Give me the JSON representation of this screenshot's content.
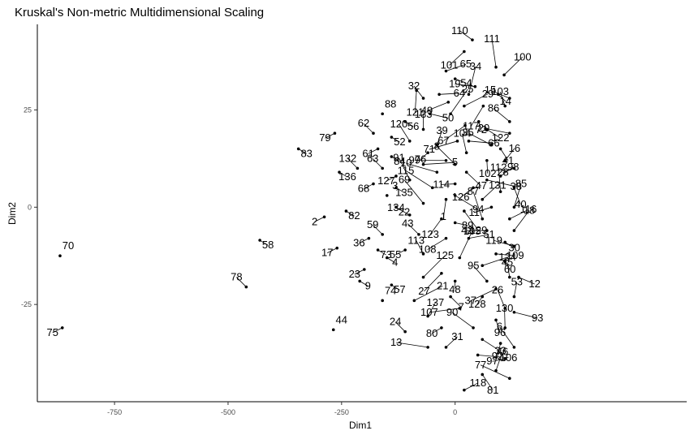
{
  "chart_data": {
    "type": "scatter",
    "title": "Kruskal's Non-metric Multidimensional Scaling",
    "xlabel": "Dim1",
    "ylabel": "Dim2",
    "xlim": [
      -920,
      510
    ],
    "ylim": [
      -50,
      47
    ],
    "xticks": [
      -750,
      -500,
      -250,
      0
    ],
    "yticks": [
      -25,
      0,
      25
    ],
    "xtick_labels": [
      "-750",
      "-500",
      "-250",
      "0"
    ],
    "ytick_labels": [
      "-25",
      "0",
      "25"
    ],
    "grid": false,
    "legend": "none",
    "points": [
      {
        "label": "70",
        "x": -870,
        "y": -12.5
      },
      {
        "label": "75",
        "x": -865,
        "y": -31
      },
      {
        "label": "58",
        "x": -430,
        "y": -8.5
      },
      {
        "label": "78",
        "x": -460,
        "y": -20.5
      },
      {
        "label": "83",
        "x": -345,
        "y": 15
      },
      {
        "label": "79",
        "x": -265,
        "y": 19
      },
      {
        "label": "44",
        "x": -268,
        "y": -31.5
      },
      {
        "label": "2",
        "x": -288,
        "y": -2.5
      },
      {
        "label": "82",
        "x": -240,
        "y": -1
      },
      {
        "label": "132",
        "x": -215,
        "y": 10
      },
      {
        "label": "136",
        "x": -255,
        "y": 9
      },
      {
        "label": "17",
        "x": -260,
        "y": -10.5
      },
      {
        "label": "110",
        "x": 38,
        "y": 43
      },
      {
        "label": "65",
        "x": -20,
        "y": 35
      },
      {
        "label": "101",
        "x": 20,
        "y": 40
      },
      {
        "label": "111",
        "x": 90,
        "y": 36
      },
      {
        "label": "54",
        "x": 0,
        "y": 33
      },
      {
        "label": "19",
        "x": 44,
        "y": 31
      },
      {
        "label": "100",
        "x": 108,
        "y": 34
      },
      {
        "label": "121",
        "x": -85,
        "y": 30
      },
      {
        "label": "32",
        "x": -70,
        "y": 28
      },
      {
        "label": "64",
        "x": -35,
        "y": 29
      },
      {
        "label": "49",
        "x": -15,
        "y": 27
      },
      {
        "label": "34",
        "x": 30,
        "y": 29
      },
      {
        "label": "14",
        "x": 95,
        "y": 29
      },
      {
        "label": "15",
        "x": 120,
        "y": 28
      },
      {
        "label": "29",
        "x": 20,
        "y": 26
      },
      {
        "label": "117",
        "x": 62,
        "y": 26
      },
      {
        "label": "103",
        "x": 110,
        "y": 26
      },
      {
        "label": "50",
        "x": -55,
        "y": 24
      },
      {
        "label": "88",
        "x": -160,
        "y": 24
      },
      {
        "label": "25",
        "x": -10,
        "y": 24
      },
      {
        "label": "72",
        "x": 52,
        "y": 22
      },
      {
        "label": "86",
        "x": 120,
        "y": 22
      },
      {
        "label": "56",
        "x": -110,
        "y": 22
      },
      {
        "label": "67",
        "x": 22,
        "y": 21
      },
      {
        "label": "133",
        "x": -70,
        "y": 20
      },
      {
        "label": "122",
        "x": 70,
        "y": 20
      },
      {
        "label": "20",
        "x": 120,
        "y": 19
      },
      {
        "label": "62",
        "x": -180,
        "y": 19
      },
      {
        "label": "52",
        "x": -140,
        "y": 18
      },
      {
        "label": "120",
        "x": -100,
        "y": 17
      },
      {
        "label": "66",
        "x": 30,
        "y": 17
      },
      {
        "label": "71",
        "x": 5,
        "y": 17
      },
      {
        "label": "39",
        "x": -40,
        "y": 16
      },
      {
        "label": "41",
        "x": 100,
        "y": 15
      },
      {
        "label": "35",
        "x": 80,
        "y": 16
      },
      {
        "label": "61",
        "x": -170,
        "y": 15
      },
      {
        "label": "76",
        "x": -60,
        "y": 14
      },
      {
        "label": "104",
        "x": 25,
        "y": 14
      },
      {
        "label": "84",
        "x": -140,
        "y": 13
      },
      {
        "label": "99",
        "x": -20,
        "y": 12
      },
      {
        "label": "16",
        "x": 110,
        "y": 12
      },
      {
        "label": "102",
        "x": 70,
        "y": 12
      },
      {
        "label": "8",
        "x": 0,
        "y": 11
      },
      {
        "label": "5",
        "x": -70,
        "y": 11
      },
      {
        "label": "28",
        "x": 130,
        "y": 10
      },
      {
        "label": "63",
        "x": -160,
        "y": 10
      },
      {
        "label": "47",
        "x": 25,
        "y": 9
      },
      {
        "label": "10",
        "x": -40,
        "y": 9
      },
      {
        "label": "98",
        "x": 100,
        "y": 8
      },
      {
        "label": "127",
        "x": -130,
        "y": 8
      },
      {
        "label": "91",
        "x": -100,
        "y": 7
      },
      {
        "label": "38",
        "x": 70,
        "y": 7
      },
      {
        "label": "114",
        "x": 0,
        "y": 6
      },
      {
        "label": "68",
        "x": -180,
        "y": 6
      },
      {
        "label": "40",
        "x": 130,
        "y": 5
      },
      {
        "label": "115",
        "x": -50,
        "y": 5
      },
      {
        "label": "135",
        "x": -130,
        "y": 5
      },
      {
        "label": "126",
        "x": 40,
        "y": 5
      },
      {
        "label": "112",
        "x": 100,
        "y": 4
      },
      {
        "label": "94",
        "x": 0,
        "y": 3
      },
      {
        "label": "3",
        "x": -150,
        "y": 3
      },
      {
        "label": "131",
        "x": 60,
        "y": 2
      },
      {
        "label": "1",
        "x": -20,
        "y": 2
      },
      {
        "label": "69",
        "x": -70,
        "y": 1
      },
      {
        "label": "22",
        "x": -130,
        "y": 0
      },
      {
        "label": "11",
        "x": 80,
        "y": 0
      },
      {
        "label": "85",
        "x": 130,
        "y": 0
      },
      {
        "label": "129",
        "x": 20,
        "y": -1
      },
      {
        "label": "134",
        "x": -100,
        "y": -2
      },
      {
        "label": "116",
        "x": 120,
        "y": -3
      },
      {
        "label": "123",
        "x": -30,
        "y": -3
      },
      {
        "label": "87",
        "x": 60,
        "y": -3
      },
      {
        "label": "89",
        "x": 0,
        "y": -4
      },
      {
        "label": "42",
        "x": 70,
        "y": -6
      },
      {
        "label": "18",
        "x": 130,
        "y": -6
      },
      {
        "label": "59",
        "x": -160,
        "y": -7
      },
      {
        "label": "43",
        "x": -80,
        "y": -7
      },
      {
        "label": "51",
        "x": 30,
        "y": -8
      },
      {
        "label": "108",
        "x": -20,
        "y": -8
      },
      {
        "label": "36",
        "x": -190,
        "y": -8
      },
      {
        "label": "30",
        "x": 110,
        "y": -9
      },
      {
        "label": "119",
        "x": 130,
        "y": -10
      },
      {
        "label": "73",
        "x": -170,
        "y": -11
      },
      {
        "label": "55",
        "x": -110,
        "y": -11
      },
      {
        "label": "113",
        "x": -70,
        "y": -12
      },
      {
        "label": "109",
        "x": 90,
        "y": -12
      },
      {
        "label": "4",
        "x": -150,
        "y": -13
      },
      {
        "label": "105",
        "x": 10,
        "y": -13
      },
      {
        "label": "60",
        "x": 110,
        "y": -14
      },
      {
        "label": "23",
        "x": -200,
        "y": -16
      },
      {
        "label": "124",
        "x": 60,
        "y": -15
      },
      {
        "label": "27",
        "x": -30,
        "y": -17
      },
      {
        "label": "45",
        "x": 120,
        "y": -18
      },
      {
        "label": "12",
        "x": 140,
        "y": -18
      },
      {
        "label": "9",
        "x": -210,
        "y": -19
      },
      {
        "label": "125",
        "x": -70,
        "y": -18
      },
      {
        "label": "48",
        "x": 0,
        "y": -19
      },
      {
        "label": "95",
        "x": 70,
        "y": -19
      },
      {
        "label": "57",
        "x": -140,
        "y": -20
      },
      {
        "label": "37",
        "x": 90,
        "y": -21
      },
      {
        "label": "53",
        "x": 130,
        "y": -23
      },
      {
        "label": "7",
        "x": -10,
        "y": -23
      },
      {
        "label": "74",
        "x": -160,
        "y": -24
      },
      {
        "label": "21",
        "x": -90,
        "y": -24
      },
      {
        "label": "128",
        "x": 60,
        "y": -23
      },
      {
        "label": "26",
        "x": 110,
        "y": -26
      },
      {
        "label": "93",
        "x": 130,
        "y": -27
      },
      {
        "label": "107",
        "x": 10,
        "y": -26
      },
      {
        "label": "137",
        "x": -60,
        "y": -28
      },
      {
        "label": "96",
        "x": 90,
        "y": -29
      },
      {
        "label": "90",
        "x": 40,
        "y": -31
      },
      {
        "label": "24",
        "x": -110,
        "y": -32
      },
      {
        "label": "80",
        "x": -30,
        "y": -31
      },
      {
        "label": "130",
        "x": 110,
        "y": -31
      },
      {
        "label": "33",
        "x": 60,
        "y": -34
      },
      {
        "label": "13",
        "x": -60,
        "y": -36
      },
      {
        "label": "31",
        "x": -20,
        "y": -36
      },
      {
        "label": "92",
        "x": 100,
        "y": -35
      },
      {
        "label": "6",
        "x": 130,
        "y": -36
      },
      {
        "label": "106",
        "x": 50,
        "y": -38
      },
      {
        "label": "97",
        "x": 110,
        "y": -39
      },
      {
        "label": "46",
        "x": 90,
        "y": -42
      },
      {
        "label": "81",
        "x": 60,
        "y": -43
      },
      {
        "label": "77",
        "x": 120,
        "y": -44
      },
      {
        "label": "118",
        "x": 20,
        "y": -47
      }
    ]
  }
}
